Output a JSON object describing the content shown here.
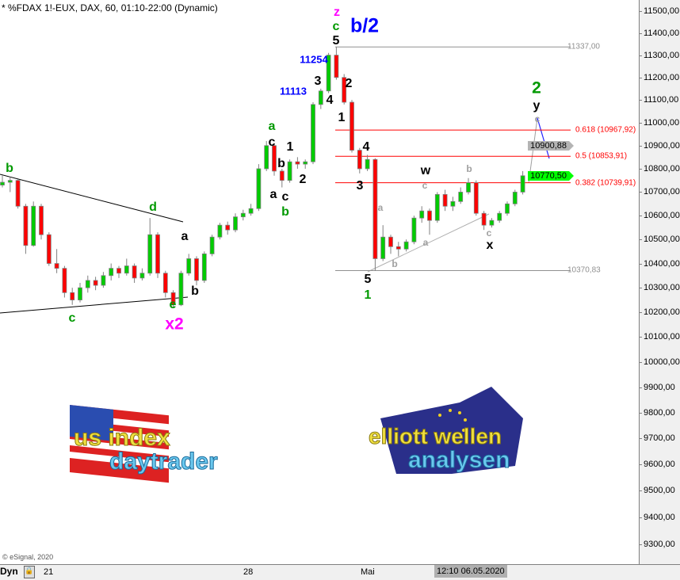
{
  "header": {
    "title": "* %FDAX 1!-EUX, DAX, 60, 01:10-22:00 (Dynamic)"
  },
  "footer": {
    "copyright": "© eSignal, 2020",
    "mode": "Dyn",
    "lock_icon": "lock-icon"
  },
  "colors": {
    "bull": "#00cc00",
    "bear": "#ff0000",
    "wick": "#808080",
    "fib": "#ff0000",
    "level": "#909090",
    "green_label": "#009900",
    "magenta_label": "#ff00ff",
    "blue_label": "#0000ff",
    "gray_label": "#a0a0a0"
  },
  "chart_data": {
    "type": "candlestick",
    "title": "* %FDAX 1!-EUX, DAX, 60, 01:10-22:00 (Dynamic)",
    "y_scale": "log",
    "ylim": [
      9200,
      11550
    ],
    "y_ticks": [
      11500,
      11400,
      11300,
      11200,
      11100,
      11000,
      10900,
      10800,
      10700,
      10600,
      10500,
      10400,
      10300,
      10200,
      10100,
      10000,
      9900,
      9800,
      9700,
      9600,
      9500,
      9400,
      9300
    ],
    "y_tick_labels": [
      "11500,00",
      "11400,00",
      "11300,00",
      "11200,00",
      "11100,00",
      "11000,00",
      "10900,00",
      "10800,00",
      "10700,00",
      "10600,00",
      "10500,00",
      "10400,00",
      "10300,00",
      "10200,00",
      "10100,00",
      "10000,00",
      "9900,00",
      "9800,00",
      "9700,00",
      "9600,00",
      "9500,00",
      "9400,00",
      "9300,00"
    ],
    "x_tick_labels": [
      "21",
      "28",
      "Mai"
    ],
    "cursor_label": "12:10 06.05.2020",
    "grid": false,
    "candles_ohlc": [
      [
        10730,
        10770,
        10720,
        10742
      ],
      [
        10742,
        10765,
        10700,
        10750
      ],
      [
        10750,
        10755,
        10630,
        10640
      ],
      [
        10640,
        10650,
        10440,
        10475
      ],
      [
        10475,
        10660,
        10470,
        10640
      ],
      [
        10640,
        10650,
        10500,
        10520
      ],
      [
        10520,
        10530,
        10390,
        10400
      ],
      [
        10400,
        10460,
        10360,
        10380
      ],
      [
        10380,
        10390,
        10260,
        10280
      ],
      [
        10280,
        10300,
        10230,
        10250
      ],
      [
        10250,
        10320,
        10240,
        10300
      ],
      [
        10300,
        10350,
        10280,
        10330
      ],
      [
        10330,
        10345,
        10290,
        10310
      ],
      [
        10310,
        10365,
        10300,
        10350
      ],
      [
        10350,
        10400,
        10330,
        10380
      ],
      [
        10380,
        10390,
        10340,
        10360
      ],
      [
        10360,
        10420,
        10350,
        10390
      ],
      [
        10390,
        10400,
        10320,
        10340
      ],
      [
        10340,
        10380,
        10330,
        10360
      ],
      [
        10360,
        10590,
        10350,
        10520
      ],
      [
        10520,
        10530,
        10340,
        10360
      ],
      [
        10360,
        10370,
        10260,
        10280
      ],
      [
        10280,
        10290,
        10220,
        10230
      ],
      [
        10230,
        10370,
        10225,
        10360
      ],
      [
        10360,
        10440,
        10350,
        10420
      ],
      [
        10420,
        10430,
        10310,
        10330
      ],
      [
        10330,
        10450,
        10320,
        10440
      ],
      [
        10440,
        10520,
        10430,
        10510
      ],
      [
        10510,
        10570,
        10500,
        10560
      ],
      [
        10560,
        10575,
        10520,
        10540
      ],
      [
        10540,
        10610,
        10530,
        10595
      ],
      [
        10595,
        10625,
        10580,
        10610
      ],
      [
        10610,
        10650,
        10600,
        10630
      ],
      [
        10630,
        10820,
        10620,
        10800
      ],
      [
        10800,
        10920,
        10790,
        10900
      ],
      [
        10900,
        10910,
        10770,
        10790
      ],
      [
        10790,
        10800,
        10720,
        10750
      ],
      [
        10750,
        10840,
        10740,
        10830
      ],
      [
        10830,
        10850,
        10800,
        10820
      ],
      [
        10820,
        10840,
        10800,
        10830
      ],
      [
        10830,
        11090,
        10820,
        11080
      ],
      [
        11080,
        11150,
        11060,
        11140
      ],
      [
        11140,
        11310,
        11130,
        11300
      ],
      [
        11300,
        11337,
        11190,
        11200
      ],
      [
        11200,
        11215,
        11080,
        11090
      ],
      [
        11090,
        11100,
        10870,
        10880
      ],
      [
        10880,
        10890,
        10780,
        10800
      ],
      [
        10800,
        10860,
        10790,
        10840
      ],
      [
        10840,
        10845,
        10370,
        10420
      ],
      [
        10420,
        10560,
        10410,
        10510
      ],
      [
        10510,
        10520,
        10440,
        10470
      ],
      [
        10470,
        10490,
        10430,
        10460
      ],
      [
        10460,
        10500,
        10450,
        10490
      ],
      [
        10490,
        10600,
        10480,
        10590
      ],
      [
        10590,
        10640,
        10570,
        10620
      ],
      [
        10620,
        10630,
        10520,
        10580
      ],
      [
        10580,
        10700,
        10570,
        10690
      ],
      [
        10690,
        10710,
        10620,
        10640
      ],
      [
        10640,
        10680,
        10620,
        10660
      ],
      [
        10660,
        10720,
        10650,
        10700
      ],
      [
        10700,
        10760,
        10690,
        10740
      ],
      [
        10740,
        10750,
        10600,
        10610
      ],
      [
        10610,
        10620,
        10540,
        10560
      ],
      [
        10560,
        10590,
        10550,
        10580
      ],
      [
        10580,
        10620,
        10570,
        10610
      ],
      [
        10610,
        10660,
        10600,
        10650
      ],
      [
        10650,
        10710,
        10640,
        10700
      ],
      [
        10700,
        10790,
        10690,
        10770
      ]
    ],
    "levels": [
      {
        "price": 11337.0,
        "label": "11337,00",
        "kind": "level"
      },
      {
        "price": 10967.92,
        "label": "0.618 (10967,92)",
        "kind": "fib"
      },
      {
        "price": 10853.91,
        "label": "0.5 (10853,91)",
        "kind": "fib"
      },
      {
        "price": 10739.91,
        "label": "0.382 (10739,91)",
        "kind": "fib"
      },
      {
        "price": 10370.83,
        "label": "10370,83",
        "kind": "level"
      }
    ],
    "price_tags": [
      {
        "label": "10900,88",
        "color": "#b4b4b4"
      },
      {
        "label": "10770,50",
        "color": "#00ff00"
      }
    ],
    "annotations": [
      {
        "text": "b"
      },
      {
        "text": "d"
      },
      {
        "text": "c"
      },
      {
        "text": "e"
      },
      {
        "text": "x2"
      },
      {
        "text": "a"
      },
      {
        "text": "b"
      },
      {
        "text": "a"
      },
      {
        "text": "c"
      },
      {
        "text": "b"
      },
      {
        "text": "1"
      },
      {
        "text": "2"
      },
      {
        "text": "a"
      },
      {
        "text": "c"
      },
      {
        "text": "b"
      },
      {
        "text": "11113"
      },
      {
        "text": "11254"
      },
      {
        "text": "3"
      },
      {
        "text": "4"
      },
      {
        "text": "z"
      },
      {
        "text": "c"
      },
      {
        "text": "5"
      },
      {
        "text": "b/2"
      },
      {
        "text": "2"
      },
      {
        "text": "1"
      },
      {
        "text": "4"
      },
      {
        "text": "3"
      },
      {
        "text": "w"
      },
      {
        "text": "c"
      },
      {
        "text": "b"
      },
      {
        "text": "a"
      },
      {
        "text": "a"
      },
      {
        "text": "b"
      },
      {
        "text": "c"
      },
      {
        "text": "x"
      },
      {
        "text": "5"
      },
      {
        "text": "1"
      },
      {
        "text": "2"
      },
      {
        "text": "y"
      },
      {
        "text": "c"
      }
    ]
  },
  "logos": [
    {
      "name": "us-index-daytrader",
      "line1": "us index",
      "line2": "daytrader"
    },
    {
      "name": "elliott-wellen-analysen",
      "line1": "elliott wellen",
      "line2": "analysen"
    }
  ]
}
